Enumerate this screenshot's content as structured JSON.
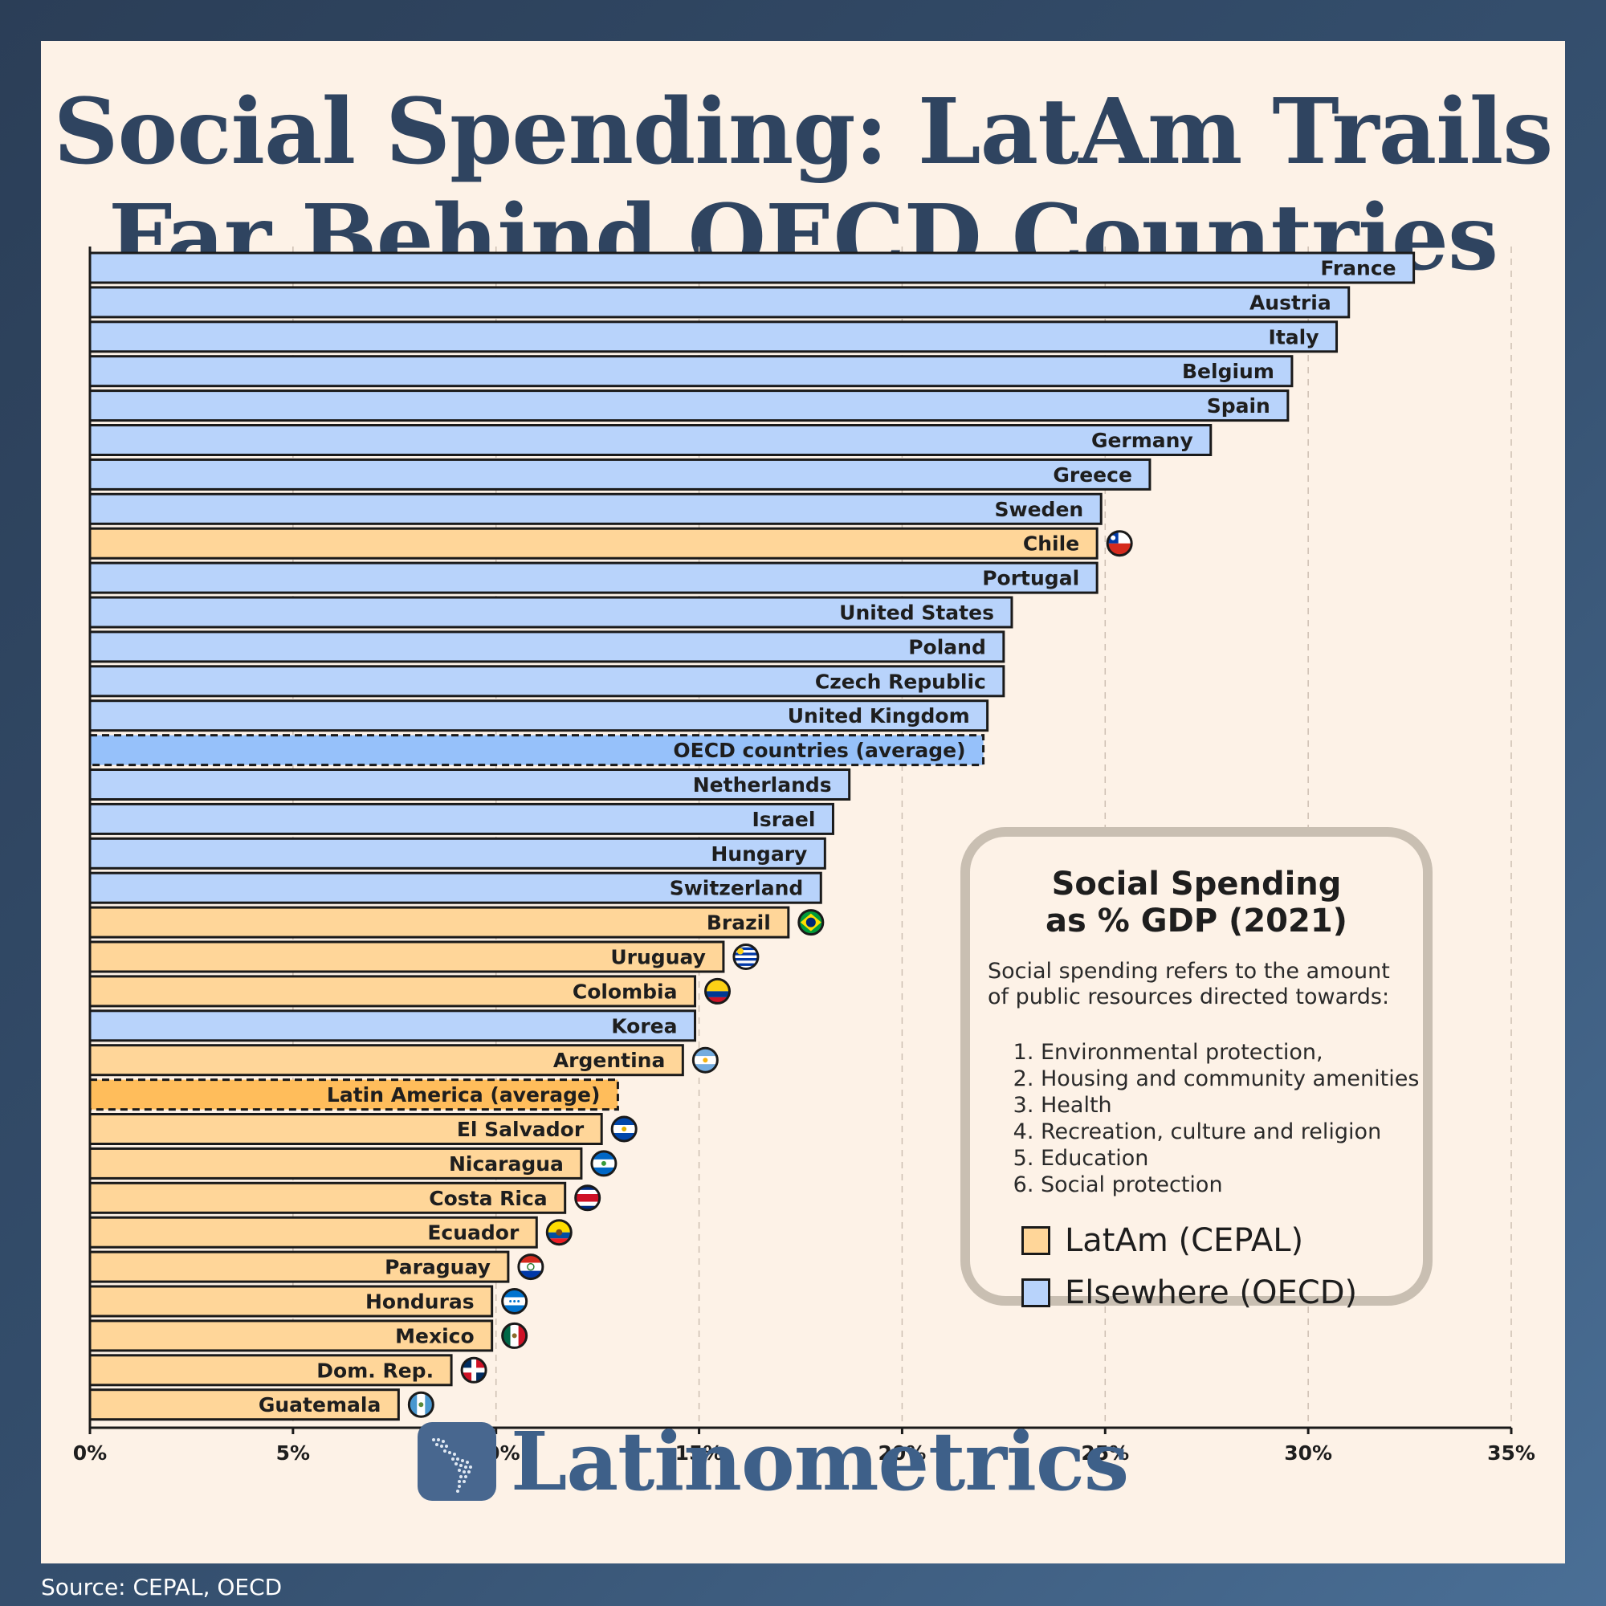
{
  "title": {
    "line1": "Social Spending: LatAm Trails",
    "line2": "Far Behind OECD Countries"
  },
  "legend": {
    "title_line1": "Social Spending",
    "title_line2": "as % GDP (2021)",
    "desc_line1": "Social spending refers to the amount",
    "desc_line2": "of public resources directed towards:",
    "items": [
      "Environmental protection,",
      "Housing and community amenities",
      "Health",
      "Recreation, culture and religion",
      "Education",
      "Social protection"
    ],
    "key_latam": "LatAm (CEPAL)",
    "key_oecd": "Elsewhere (OECD)"
  },
  "colors": {
    "latam": "#ffd699",
    "oecd": "#b8d3fb",
    "latam_avg": "#ffbd5b",
    "oecd_avg": "#96c1fa"
  },
  "logo": {
    "text": "Latinometrics",
    "icon": "latin-america-map-icon"
  },
  "source": "Source: CEPAL, OECD",
  "chart_data": {
    "type": "bar",
    "orientation": "horizontal",
    "xlim": [
      0,
      35
    ],
    "ticks": [
      0,
      5,
      10,
      15,
      20,
      25,
      30,
      35
    ],
    "tick_labels": [
      "0%",
      "5%",
      "10%",
      "15%",
      "20%",
      "25%",
      "30%",
      "35%"
    ],
    "grid": true,
    "bars": [
      {
        "label": "France",
        "value": 32.6,
        "group": "oecd"
      },
      {
        "label": "Austria",
        "value": 31.0,
        "group": "oecd"
      },
      {
        "label": "Italy",
        "value": 30.7,
        "group": "oecd"
      },
      {
        "label": "Belgium",
        "value": 29.6,
        "group": "oecd"
      },
      {
        "label": "Spain",
        "value": 29.5,
        "group": "oecd"
      },
      {
        "label": "Germany",
        "value": 27.6,
        "group": "oecd"
      },
      {
        "label": "Greece",
        "value": 26.1,
        "group": "oecd"
      },
      {
        "label": "Sweden",
        "value": 24.9,
        "group": "oecd"
      },
      {
        "label": "Chile",
        "value": 24.8,
        "group": "latam",
        "flag": "chile"
      },
      {
        "label": "Portugal",
        "value": 24.8,
        "group": "oecd"
      },
      {
        "label": "United States",
        "value": 22.7,
        "group": "oecd"
      },
      {
        "label": "Poland",
        "value": 22.5,
        "group": "oecd"
      },
      {
        "label": "Czech Republic",
        "value": 22.5,
        "group": "oecd"
      },
      {
        "label": "United Kingdom",
        "value": 22.1,
        "group": "oecd"
      },
      {
        "label": "OECD countries (average)",
        "value": 22.0,
        "group": "oecd",
        "average": true
      },
      {
        "label": "Netherlands",
        "value": 18.7,
        "group": "oecd"
      },
      {
        "label": "Israel",
        "value": 18.3,
        "group": "oecd"
      },
      {
        "label": "Hungary",
        "value": 18.1,
        "group": "oecd"
      },
      {
        "label": "Switzerland",
        "value": 18.0,
        "group": "oecd"
      },
      {
        "label": "Brazil",
        "value": 17.2,
        "group": "latam",
        "flag": "brazil"
      },
      {
        "label": "Uruguay",
        "value": 15.6,
        "group": "latam",
        "flag": "uruguay"
      },
      {
        "label": "Colombia",
        "value": 14.9,
        "group": "latam",
        "flag": "colombia"
      },
      {
        "label": "Korea",
        "value": 14.9,
        "group": "oecd"
      },
      {
        "label": "Argentina",
        "value": 14.6,
        "group": "latam",
        "flag": "argentina"
      },
      {
        "label": "Latin America (average)",
        "value": 13.0,
        "group": "latam",
        "average": true
      },
      {
        "label": "El Salvador",
        "value": 12.6,
        "group": "latam",
        "flag": "el-salvador"
      },
      {
        "label": "Nicaragua",
        "value": 12.1,
        "group": "latam",
        "flag": "nicaragua"
      },
      {
        "label": "Costa Rica",
        "value": 11.7,
        "group": "latam",
        "flag": "costa-rica"
      },
      {
        "label": "Ecuador",
        "value": 11.0,
        "group": "latam",
        "flag": "ecuador"
      },
      {
        "label": "Paraguay",
        "value": 10.3,
        "group": "latam",
        "flag": "paraguay"
      },
      {
        "label": "Honduras",
        "value": 9.9,
        "group": "latam",
        "flag": "honduras"
      },
      {
        "label": "Mexico",
        "value": 9.9,
        "group": "latam",
        "flag": "mexico"
      },
      {
        "label": "Dom. Rep.",
        "value": 8.9,
        "group": "latam",
        "flag": "dominican-republic"
      },
      {
        "label": "Guatemala",
        "value": 7.6,
        "group": "latam",
        "flag": "guatemala"
      }
    ]
  }
}
